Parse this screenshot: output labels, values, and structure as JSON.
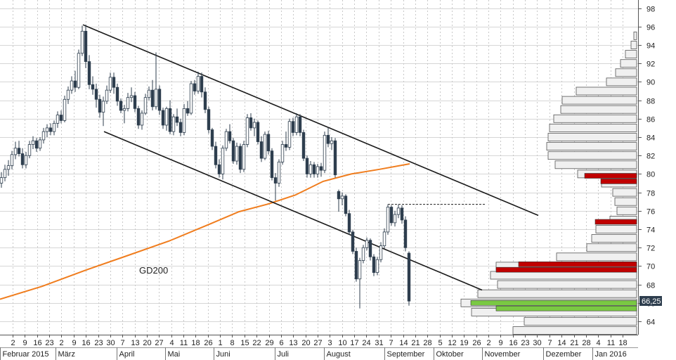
{
  "chart_data": {
    "type": "candlestick",
    "title": "",
    "ylim": [
      62.5,
      99
    ],
    "y_ticks": [
      64,
      66,
      68,
      70,
      72,
      74,
      76,
      78,
      80,
      82,
      84,
      86,
      88,
      90,
      92,
      94,
      96,
      98
    ],
    "last_price": "66,25",
    "x_tick_days": [
      "2",
      "9",
      "16",
      "23",
      "2",
      "9",
      "16",
      "23",
      "30",
      "7",
      "13",
      "20",
      "27",
      "4",
      "11",
      "18",
      "26",
      "1",
      "8",
      "15",
      "22",
      "29",
      "6",
      "13",
      "20",
      "27",
      "3",
      "10",
      "17",
      "24",
      "31",
      "7",
      "14",
      "21",
      "28",
      "5",
      "12",
      "19",
      "26",
      "2",
      "9",
      "16",
      "23",
      "30",
      "7",
      "14",
      "21",
      "28",
      "4",
      "11",
      "18"
    ],
    "months": [
      "Februar 2015",
      "März",
      "April",
      "Mai",
      "Juni",
      "Juli",
      "August",
      "September",
      "Oktober",
      "November",
      "Dezember",
      "Jan 2016"
    ],
    "gd200_label": "GD200",
    "gd200": [
      [
        0,
        66.4
      ],
      [
        60,
        67.8
      ],
      [
        120,
        69.5
      ],
      [
        180,
        71.1
      ],
      [
        240,
        72.7
      ],
      [
        300,
        74.6
      ],
      [
        340,
        75.9
      ],
      [
        380,
        76.7
      ],
      [
        420,
        77.7
      ],
      [
        460,
        79.2
      ],
      [
        500,
        80.0
      ],
      [
        540,
        80.5
      ],
      [
        583,
        81.1
      ]
    ],
    "channel_upper": [
      [
        118,
        96.2
      ],
      [
        766,
        75.5
      ]
    ],
    "channel_lower": [
      [
        148,
        84.6
      ],
      [
        686,
        67.4
      ]
    ],
    "resistance_dashed": [
      [
        552,
        76.7
      ],
      [
        692,
        76.7
      ]
    ],
    "candles": [
      [
        2,
        79.0,
        80.2,
        78.5,
        79.6
      ],
      [
        7,
        79.6,
        81.0,
        79.2,
        80.5
      ],
      [
        12,
        80.5,
        81.5,
        79.8,
        80.9
      ],
      [
        17,
        80.9,
        82.5,
        80.5,
        82.1
      ],
      [
        22,
        82.1,
        83.5,
        81.6,
        82.8
      ],
      [
        27,
        82.8,
        83.6,
        81.9,
        82.2
      ],
      [
        32,
        82.2,
        82.8,
        80.6,
        81.0
      ],
      [
        37,
        81.0,
        82.4,
        80.6,
        82.0
      ],
      [
        42,
        82.0,
        83.6,
        81.7,
        83.2
      ],
      [
        47,
        83.2,
        84.1,
        82.7,
        83.6
      ],
      [
        52,
        83.6,
        83.9,
        82.4,
        82.8
      ],
      [
        57,
        82.8,
        84.0,
        82.5,
        83.7
      ],
      [
        62,
        83.7,
        85.0,
        83.3,
        84.6
      ],
      [
        67,
        84.6,
        85.4,
        84.0,
        85.0
      ],
      [
        72,
        85.0,
        85.5,
        84.2,
        84.6
      ],
      [
        77,
        84.6,
        85.8,
        84.2,
        85.5
      ],
      [
        82,
        85.5,
        86.8,
        85.0,
        86.4
      ],
      [
        87,
        86.4,
        86.9,
        85.5,
        85.8
      ],
      [
        92,
        85.8,
        88.5,
        85.6,
        88.1
      ],
      [
        97,
        88.1,
        89.5,
        87.6,
        89.1
      ],
      [
        102,
        89.1,
        90.6,
        88.7,
        90.1
      ],
      [
        107,
        90.1,
        91.2,
        88.9,
        89.4
      ],
      [
        112,
        89.4,
        93.5,
        89.2,
        93.1
      ],
      [
        117,
        93.1,
        96.1,
        92.8,
        95.5
      ],
      [
        122,
        95.5,
        96.2,
        91.5,
        92.2
      ],
      [
        127,
        92.2,
        92.9,
        89.2,
        89.7
      ],
      [
        132,
        89.7,
        90.6,
        88.6,
        89.2
      ],
      [
        137,
        89.2,
        89.8,
        87.2,
        88.1
      ],
      [
        142,
        88.1,
        88.6,
        86.1,
        86.7
      ],
      [
        147,
        86.7,
        88.4,
        85.2,
        87.9
      ],
      [
        152,
        87.9,
        89.6,
        87.6,
        89.1
      ],
      [
        157,
        89.1,
        91.0,
        88.8,
        90.5
      ],
      [
        162,
        90.5,
        91.0,
        88.7,
        89.4
      ],
      [
        167,
        89.4,
        89.8,
        87.4,
        87.9
      ],
      [
        172,
        87.9,
        88.2,
        86.6,
        86.9
      ],
      [
        177,
        86.9,
        87.5,
        85.5,
        87.1
      ],
      [
        182,
        87.1,
        88.8,
        86.8,
        88.3
      ],
      [
        187,
        88.3,
        89.4,
        87.8,
        88.5
      ],
      [
        192,
        88.5,
        88.9,
        86.7,
        87.1
      ],
      [
        197,
        87.1,
        87.4,
        84.9,
        85.3
      ],
      [
        202,
        85.3,
        86.9,
        84.8,
        86.6
      ],
      [
        207,
        86.6,
        88.7,
        86.4,
        88.3
      ],
      [
        212,
        88.3,
        89.5,
        88.0,
        89.1
      ],
      [
        217,
        89.1,
        90.2,
        86.9,
        87.3
      ],
      [
        222,
        87.3,
        93.2,
        87.0,
        89.2
      ],
      [
        227,
        89.2,
        89.6,
        86.4,
        86.9
      ],
      [
        232,
        86.9,
        87.2,
        84.9,
        85.3
      ],
      [
        237,
        85.3,
        87.3,
        84.7,
        87.1
      ],
      [
        242,
        87.1,
        88.0,
        84.3,
        84.6
      ],
      [
        247,
        84.6,
        86.5,
        84.2,
        86.2
      ],
      [
        252,
        86.2,
        87.1,
        85.2,
        85.6
      ],
      [
        257,
        85.6,
        86.0,
        84.1,
        84.5
      ],
      [
        262,
        84.5,
        87.6,
        84.2,
        87.1
      ],
      [
        267,
        87.1,
        87.9,
        86.3,
        86.6
      ],
      [
        272,
        86.6,
        90.1,
        86.4,
        89.8
      ],
      [
        277,
        89.8,
        90.2,
        88.6,
        89.0
      ],
      [
        282,
        89.0,
        91.1,
        88.7,
        90.6
      ],
      [
        287,
        90.6,
        91.0,
        88.3,
        88.9
      ],
      [
        292,
        88.9,
        89.4,
        86.6,
        87.0
      ],
      [
        297,
        87.0,
        87.3,
        84.4,
        84.8
      ],
      [
        302,
        84.8,
        85.0,
        82.6,
        83.0
      ],
      [
        307,
        83.0,
        83.5,
        80.6,
        81.0
      ],
      [
        312,
        81.0,
        81.6,
        79.6,
        80.0
      ],
      [
        317,
        80.0,
        83.1,
        79.4,
        82.8
      ],
      [
        322,
        82.8,
        84.9,
        82.5,
        84.6
      ],
      [
        327,
        84.6,
        85.4,
        83.3,
        83.6
      ],
      [
        332,
        83.6,
        83.9,
        81.1,
        81.4
      ],
      [
        337,
        81.4,
        83.4,
        81.0,
        83.0
      ],
      [
        342,
        83.0,
        83.3,
        80.1,
        80.5
      ],
      [
        347,
        80.5,
        83.6,
        80.2,
        83.2
      ],
      [
        352,
        83.2,
        86.5,
        82.9,
        86.1
      ],
      [
        357,
        86.1,
        86.6,
        84.7,
        85.0
      ],
      [
        362,
        85.0,
        86.0,
        84.1,
        85.6
      ],
      [
        367,
        85.6,
        85.8,
        83.2,
        83.5
      ],
      [
        372,
        83.5,
        84.1,
        81.3,
        81.7
      ],
      [
        377,
        81.7,
        84.6,
        81.5,
        84.3
      ],
      [
        382,
        84.3,
        84.7,
        82.1,
        82.5
      ],
      [
        387,
        82.5,
        82.8,
        79.3,
        79.6
      ],
      [
        392,
        79.6,
        80.1,
        77.1,
        79.0
      ],
      [
        397,
        79.0,
        81.6,
        78.6,
        81.3
      ],
      [
        402,
        81.3,
        83.6,
        81.0,
        83.2
      ],
      [
        407,
        83.2,
        84.6,
        82.5,
        82.9
      ],
      [
        412,
        82.9,
        86.0,
        82.6,
        85.7
      ],
      [
        417,
        85.7,
        86.1,
        84.1,
        84.5
      ],
      [
        422,
        84.5,
        86.6,
        84.2,
        86.2
      ],
      [
        427,
        86.2,
        86.5,
        84.1,
        84.5
      ],
      [
        432,
        84.5,
        84.8,
        81.4,
        81.7
      ],
      [
        437,
        81.7,
        82.0,
        79.6,
        80.0
      ],
      [
        442,
        80.0,
        81.4,
        79.6,
        81.0
      ],
      [
        447,
        81.0,
        81.3,
        79.6,
        80.0
      ],
      [
        452,
        80.0,
        81.1,
        79.6,
        80.8
      ],
      [
        457,
        80.8,
        81.2,
        79.7,
        80.4
      ],
      [
        462,
        80.4,
        84.6,
        80.1,
        84.2
      ],
      [
        467,
        84.2,
        85.0,
        82.9,
        83.3
      ],
      [
        472,
        83.3,
        84.0,
        82.6,
        83.6
      ],
      [
        477,
        83.6,
        83.9,
        79.6,
        79.9
      ],
      [
        482,
        78.1,
        78.3,
        75.9,
        77.3
      ],
      [
        487,
        77.3,
        78.0,
        76.6,
        77.6
      ],
      [
        492,
        77.6,
        77.8,
        75.4,
        75.7
      ],
      [
        497,
        75.7,
        76.1,
        73.4,
        73.7
      ],
      [
        502,
        73.7,
        73.9,
        71.3,
        71.6
      ],
      [
        507,
        71.6,
        72.0,
        68.3,
        68.6
      ],
      [
        512,
        68.6,
        70.9,
        65.4,
        70.6
      ],
      [
        517,
        70.6,
        72.3,
        70.3,
        72.0
      ],
      [
        522,
        72.0,
        73.1,
        71.7,
        72.8
      ],
      [
        527,
        72.8,
        73.0,
        70.6,
        71.0
      ],
      [
        532,
        71.0,
        71.3,
        68.9,
        69.3
      ],
      [
        537,
        69.3,
        71.0,
        69.0,
        70.7
      ],
      [
        542,
        70.7,
        72.6,
        70.4,
        72.2
      ],
      [
        547,
        72.2,
        74.1,
        71.9,
        73.7
      ],
      [
        552,
        73.7,
        76.7,
        73.4,
        76.4
      ],
      [
        557,
        76.4,
        76.6,
        74.4,
        74.7
      ],
      [
        562,
        74.7,
        76.0,
        74.3,
        75.6
      ],
      [
        567,
        75.6,
        76.7,
        75.2,
        76.3
      ],
      [
        572,
        76.3,
        76.6,
        74.6,
        75.0
      ],
      [
        577,
        75.0,
        75.4,
        71.6,
        72.0
      ],
      [
        582,
        71.4,
        71.6,
        65.7,
        66.2
      ]
    ],
    "volume_profile": [
      [
        96,
        906
      ],
      [
        95,
        902
      ],
      [
        94,
        898
      ],
      [
        93,
        890
      ],
      [
        92,
        883
      ],
      [
        91,
        876
      ],
      [
        90,
        863
      ],
      [
        89,
        820
      ],
      [
        88,
        800
      ],
      [
        87,
        798
      ],
      [
        86,
        788
      ],
      [
        85,
        782
      ],
      [
        84,
        780
      ],
      [
        83,
        778
      ],
      [
        82,
        780
      ],
      [
        81,
        790
      ],
      [
        80,
        822
      ],
      [
        79,
        856
      ],
      [
        78,
        872
      ],
      [
        77,
        875
      ],
      [
        76,
        878
      ],
      [
        75,
        868
      ],
      [
        74,
        848
      ],
      [
        73,
        842
      ],
      [
        72,
        835
      ],
      [
        71,
        792
      ],
      [
        70,
        706
      ],
      [
        69,
        698
      ],
      [
        68,
        708
      ],
      [
        67,
        680
      ],
      [
        66,
        656
      ],
      [
        65,
        671
      ],
      [
        64,
        746
      ],
      [
        63,
        730
      ]
    ],
    "profile_highlights": [
      {
        "y": 79.8,
        "x0": 832,
        "color": "#c00000"
      },
      {
        "y": 79.2,
        "x0": 855,
        "color": "#c00000"
      },
      {
        "y": 74.8,
        "x0": 847,
        "color": "#c00000"
      },
      {
        "y": 70.2,
        "x0": 738,
        "color": "#c00000"
      },
      {
        "y": 69.6,
        "x0": 706,
        "color": "#c00000"
      },
      {
        "y": 66.0,
        "x0": 670,
        "color": "#7ac943"
      },
      {
        "y": 65.4,
        "x0": 706,
        "color": "#7ac943"
      }
    ]
  }
}
